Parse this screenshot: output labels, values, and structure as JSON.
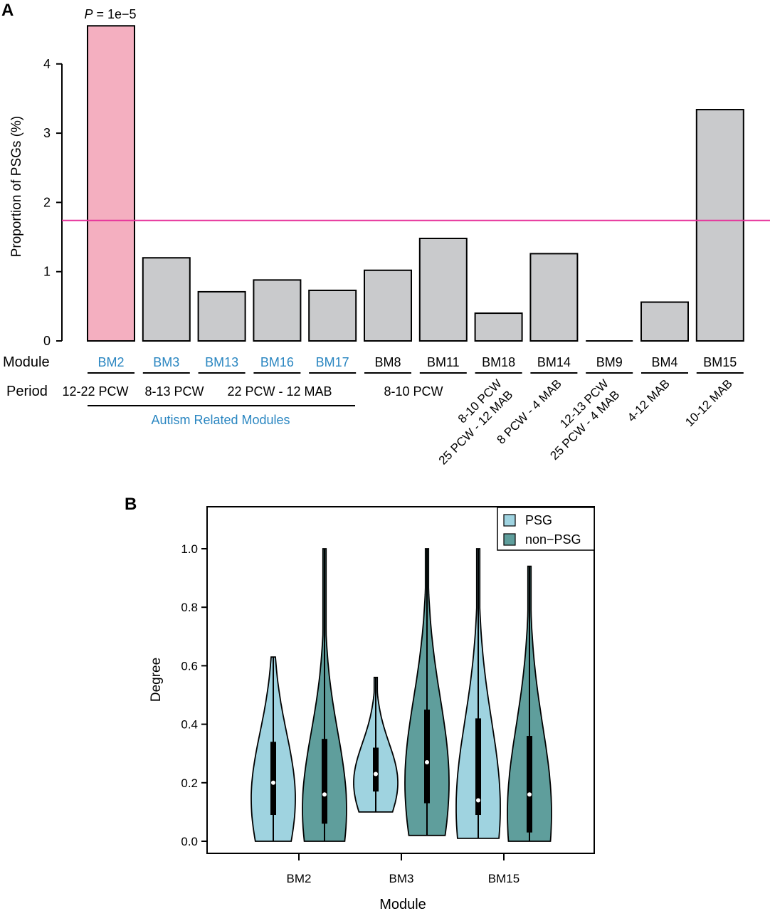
{
  "panel_a": {
    "label": "A",
    "ylabel": "Proportion of PSGs (%)",
    "module_label": "Module",
    "period_label": "Period",
    "pvalue_italic": "P",
    "pvalue_rest": " = 1e−5",
    "group_label": "Autism Related Modules",
    "periods_flat": [
      "12-22 PCW",
      "8-13 PCW",
      "22 PCW - 12 MAB",
      "8-10 PCW"
    ],
    "periods_rot": [
      {
        "lines": [
          "8-10 PCW",
          "25 PCW - 12 MAB"
        ]
      },
      {
        "lines": [
          "8 PCW - 4 MAB"
        ]
      },
      {
        "lines": [
          "12-13 PCW",
          "25 PCW - 4 MAB"
        ]
      },
      {
        "lines": [
          "4-12 MAB"
        ]
      },
      {
        "lines": [
          "10-12 MAB"
        ]
      }
    ]
  },
  "panel_b": {
    "label": "B",
    "ylabel": "Degree",
    "xlabel": "Module",
    "legend": [
      {
        "name": "PSG",
        "color": "#9fd3e0"
      },
      {
        "name": "non−PSG",
        "color": "#5f9e9c"
      }
    ]
  },
  "colors": {
    "highlight_bar": "#f4afc0",
    "normal_bar": "#c9cacc",
    "threshold_line": "#e6329a",
    "autism_text": "#2a86c1"
  },
  "chart_data": [
    {
      "type": "bar",
      "title": "",
      "xlabel": "Module",
      "ylabel": "Proportion of PSGs (%)",
      "ylim": [
        0,
        4.6
      ],
      "yticks": [
        0,
        1,
        2,
        3,
        4
      ],
      "threshold": 1.74,
      "categories": [
        "BM2",
        "BM3",
        "BM13",
        "BM16",
        "BM17",
        "BM8",
        "BM11",
        "BM18",
        "BM14",
        "BM9",
        "BM4",
        "BM15"
      ],
      "values": [
        4.55,
        1.2,
        0.71,
        0.88,
        0.73,
        1.02,
        1.48,
        0.4,
        1.26,
        0.0,
        0.56,
        3.34
      ],
      "highlight": [
        "BM2"
      ],
      "autism_related": [
        "BM2",
        "BM3",
        "BM13",
        "BM16",
        "BM17"
      ],
      "annotation": "P = 1e−5"
    },
    {
      "type": "violin",
      "title": "",
      "xlabel": "Module",
      "ylabel": "Degree",
      "ylim": [
        0,
        1.1
      ],
      "yticks": [
        "0.0",
        "0.2",
        "0.4",
        "0.6",
        "0.8",
        "1.0"
      ],
      "categories": [
        "BM2",
        "BM3",
        "BM15"
      ],
      "series": [
        {
          "name": "PSG",
          "values": [
            {
              "min": 0.0,
              "q1": 0.09,
              "median": 0.2,
              "q3": 0.34,
              "max": 0.63
            },
            {
              "min": 0.1,
              "q1": 0.17,
              "median": 0.23,
              "q3": 0.32,
              "max": 0.56
            },
            {
              "min": 0.01,
              "q1": 0.09,
              "median": 0.14,
              "q3": 0.42,
              "max": 1.0
            }
          ]
        },
        {
          "name": "non−PSG",
          "values": [
            {
              "min": 0.0,
              "q1": 0.06,
              "median": 0.16,
              "q3": 0.35,
              "max": 1.0
            },
            {
              "min": 0.02,
              "q1": 0.13,
              "median": 0.27,
              "q3": 0.45,
              "max": 1.0
            },
            {
              "min": 0.0,
              "q1": 0.03,
              "median": 0.16,
              "q3": 0.36,
              "max": 0.94
            }
          ]
        }
      ]
    }
  ]
}
